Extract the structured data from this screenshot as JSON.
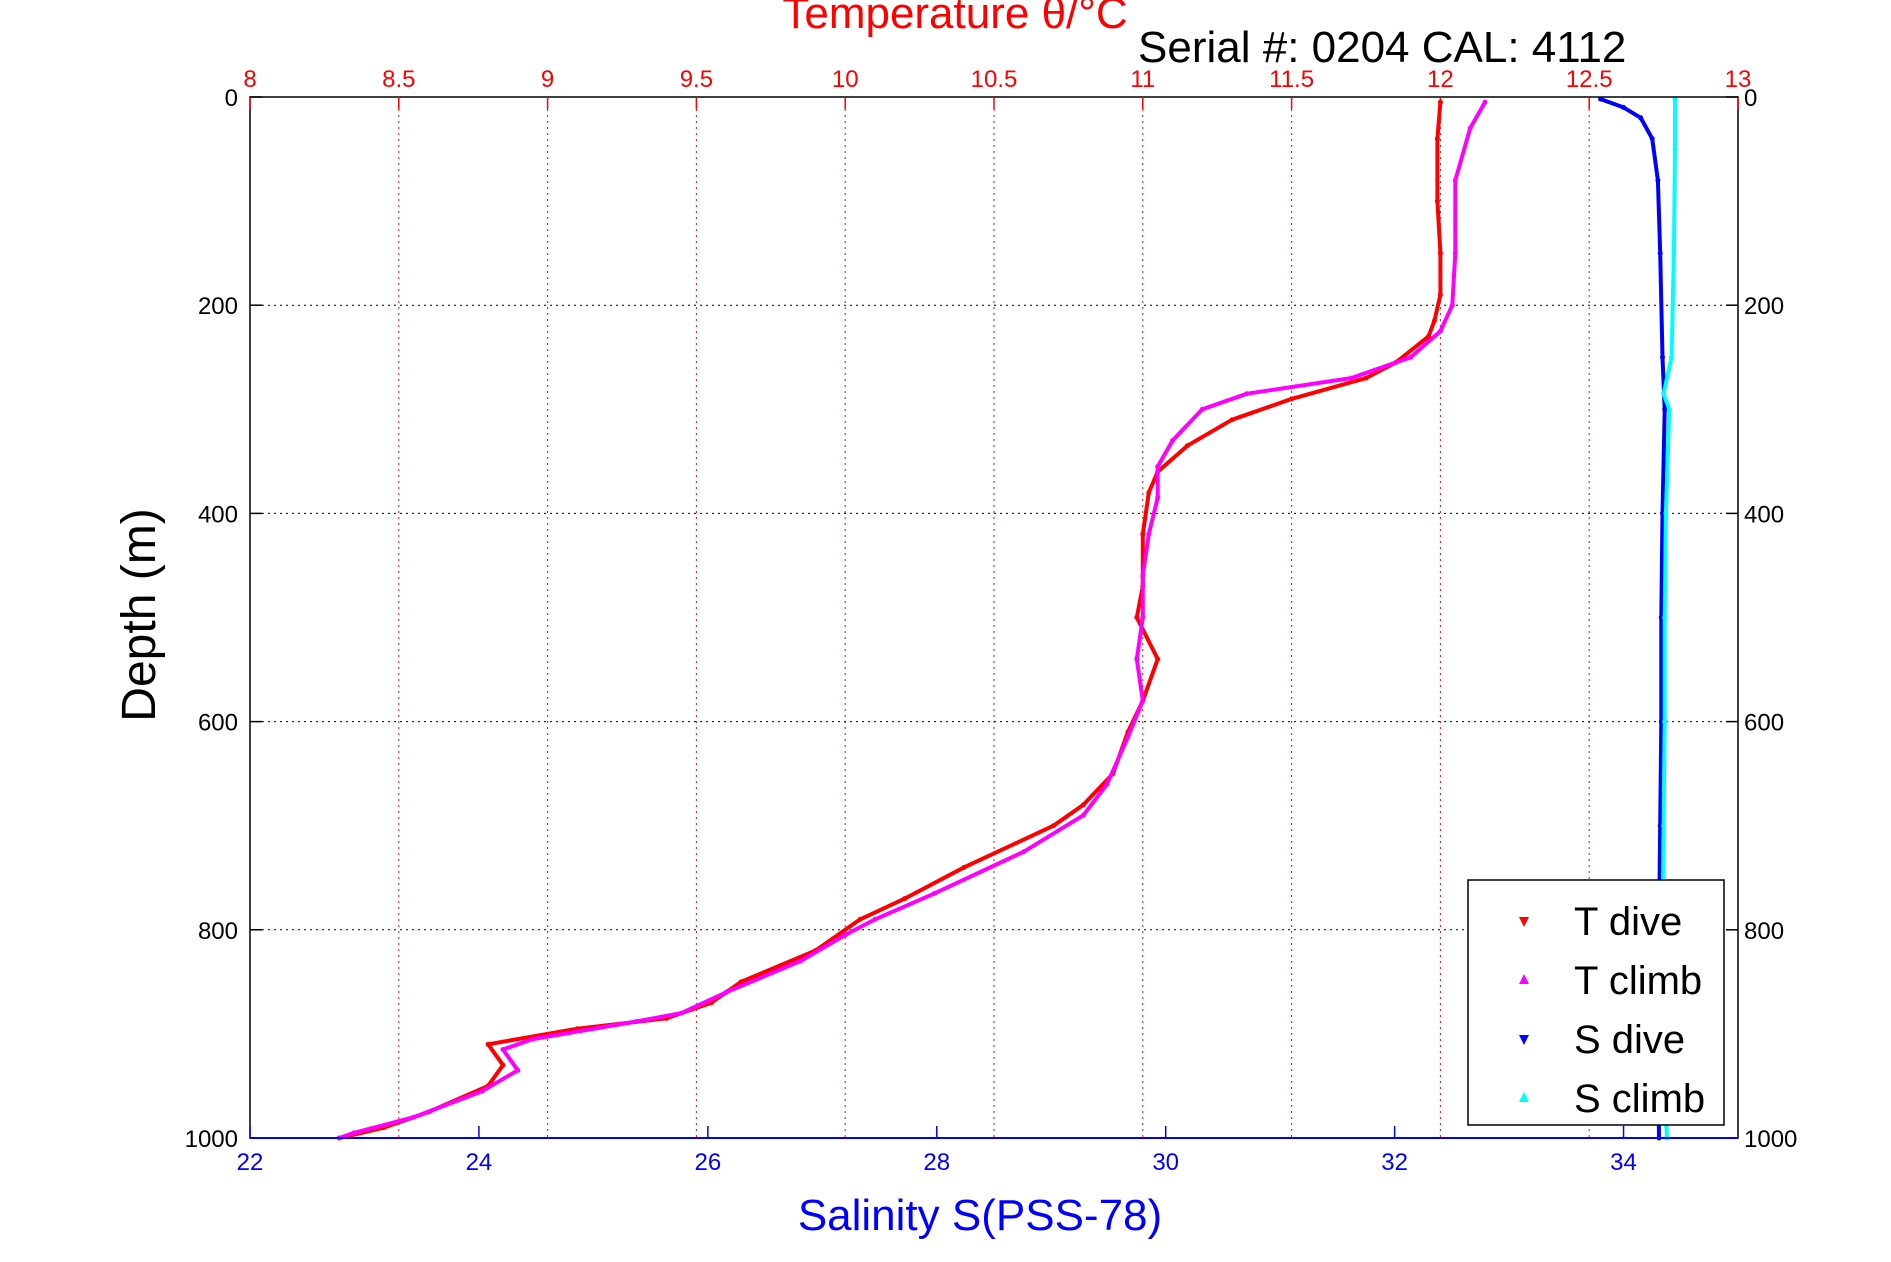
{
  "titles": {
    "top_title": "Temperature θ/°C",
    "serial": "Serial #: 0204  CAL: 4112"
  },
  "chart_data": {
    "type": "scatter",
    "title": "Temperature θ/°C",
    "subtitle": "Serial #: 0204  CAL: 4112",
    "ylabel": "Depth (m)",
    "x_top_label": "Temperature θ/°C",
    "x_bottom_label": "Salinity S(PSS-78)",
    "y_range": [
      1000,
      0
    ],
    "y_ticks": [
      0,
      200,
      400,
      600,
      800,
      1000
    ],
    "y_tick_labels": [
      "0",
      "200",
      "400",
      "600",
      "800",
      "1000"
    ],
    "temperature_range": [
      8,
      13
    ],
    "temperature_ticks": [
      8,
      8.5,
      9,
      9.5,
      10,
      10.5,
      11,
      11.5,
      12,
      12.5,
      13
    ],
    "temperature_tick_labels": [
      "8",
      "8.5",
      "9",
      "9.5",
      "10",
      "10.5",
      "11",
      "11.5",
      "12",
      "12.5",
      "13"
    ],
    "salinity_range": [
      22,
      35
    ],
    "salinity_ticks": [
      22,
      24,
      26,
      28,
      30,
      32,
      34
    ],
    "salinity_tick_labels": [
      "22",
      "24",
      "26",
      "28",
      "30",
      "32",
      "34"
    ],
    "grid": true,
    "legend_position": "bottom-right",
    "series": [
      {
        "name": "T dive",
        "axis": "temperature",
        "color": "#ff0000",
        "marker": "triangle-down",
        "points": [
          [
            12.0,
            5
          ],
          [
            11.99,
            40
          ],
          [
            11.99,
            100
          ],
          [
            12.0,
            150
          ],
          [
            12.0,
            190
          ],
          [
            11.98,
            215
          ],
          [
            11.96,
            230
          ],
          [
            11.85,
            255
          ],
          [
            11.75,
            270
          ],
          [
            11.5,
            290
          ],
          [
            11.3,
            310
          ],
          [
            11.15,
            335
          ],
          [
            11.05,
            360
          ],
          [
            11.02,
            380
          ],
          [
            11.0,
            420
          ],
          [
            11.0,
            470
          ],
          [
            10.98,
            500
          ],
          [
            11.05,
            540
          ],
          [
            11.0,
            580
          ],
          [
            10.95,
            610
          ],
          [
            10.9,
            650
          ],
          [
            10.8,
            680
          ],
          [
            10.7,
            700
          ],
          [
            10.4,
            740
          ],
          [
            10.2,
            770
          ],
          [
            10.05,
            790
          ],
          [
            9.9,
            820
          ],
          [
            9.65,
            850
          ],
          [
            9.55,
            870
          ],
          [
            9.4,
            885
          ],
          [
            9.1,
            895
          ],
          [
            8.8,
            910
          ],
          [
            8.85,
            930
          ],
          [
            8.8,
            950
          ],
          [
            8.6,
            975
          ],
          [
            8.45,
            990
          ],
          [
            8.3,
            1000
          ]
        ]
      },
      {
        "name": "T climb",
        "axis": "temperature",
        "color": "#ff00ff",
        "marker": "triangle-up",
        "points": [
          [
            12.15,
            5
          ],
          [
            12.1,
            30
          ],
          [
            12.05,
            80
          ],
          [
            12.05,
            150
          ],
          [
            12.04,
            200
          ],
          [
            12.0,
            225
          ],
          [
            11.9,
            250
          ],
          [
            11.7,
            270
          ],
          [
            11.35,
            285
          ],
          [
            11.2,
            300
          ],
          [
            11.1,
            330
          ],
          [
            11.05,
            355
          ],
          [
            11.05,
            385
          ],
          [
            11.02,
            420
          ],
          [
            11.0,
            460
          ],
          [
            11.0,
            500
          ],
          [
            10.98,
            540
          ],
          [
            11.0,
            580
          ],
          [
            10.95,
            615
          ],
          [
            10.88,
            660
          ],
          [
            10.8,
            690
          ],
          [
            10.6,
            725
          ],
          [
            10.3,
            765
          ],
          [
            10.1,
            790
          ],
          [
            10.0,
            805
          ],
          [
            9.85,
            830
          ],
          [
            9.6,
            860
          ],
          [
            9.45,
            880
          ],
          [
            9.3,
            888
          ],
          [
            8.95,
            905
          ],
          [
            8.85,
            915
          ],
          [
            8.9,
            935
          ],
          [
            8.78,
            955
          ],
          [
            8.55,
            980
          ],
          [
            8.35,
            995
          ],
          [
            8.3,
            1000
          ]
        ]
      },
      {
        "name": "S dive",
        "axis": "salinity",
        "color": "#0000ff",
        "marker": "triangle-down",
        "points": [
          [
            33.8,
            2
          ],
          [
            34.0,
            10
          ],
          [
            34.15,
            20
          ],
          [
            34.25,
            40
          ],
          [
            34.3,
            80
          ],
          [
            34.32,
            150
          ],
          [
            34.34,
            250
          ],
          [
            34.36,
            300
          ],
          [
            34.34,
            400
          ],
          [
            34.33,
            500
          ],
          [
            34.33,
            600
          ],
          [
            34.32,
            700
          ],
          [
            34.31,
            800
          ],
          [
            34.3,
            900
          ],
          [
            34.31,
            1000
          ]
        ]
      },
      {
        "name": "S climb",
        "axis": "salinity",
        "color": "#00ffff",
        "marker": "triangle-up",
        "points": [
          [
            34.45,
            2
          ],
          [
            34.45,
            50
          ],
          [
            34.44,
            150
          ],
          [
            34.42,
            250
          ],
          [
            34.35,
            285
          ],
          [
            34.4,
            300
          ],
          [
            34.37,
            400
          ],
          [
            34.36,
            500
          ],
          [
            34.36,
            600
          ],
          [
            34.35,
            700
          ],
          [
            34.34,
            800
          ],
          [
            34.33,
            900
          ],
          [
            34.38,
            1000
          ]
        ]
      }
    ]
  },
  "legend": {
    "items": [
      {
        "label": "T dive",
        "color": "#ff0000"
      },
      {
        "label": "T climb",
        "color": "#ff00ff"
      },
      {
        "label": "S dive",
        "color": "#0000ff"
      },
      {
        "label": "S climb",
        "color": "#00ffff"
      }
    ]
  }
}
